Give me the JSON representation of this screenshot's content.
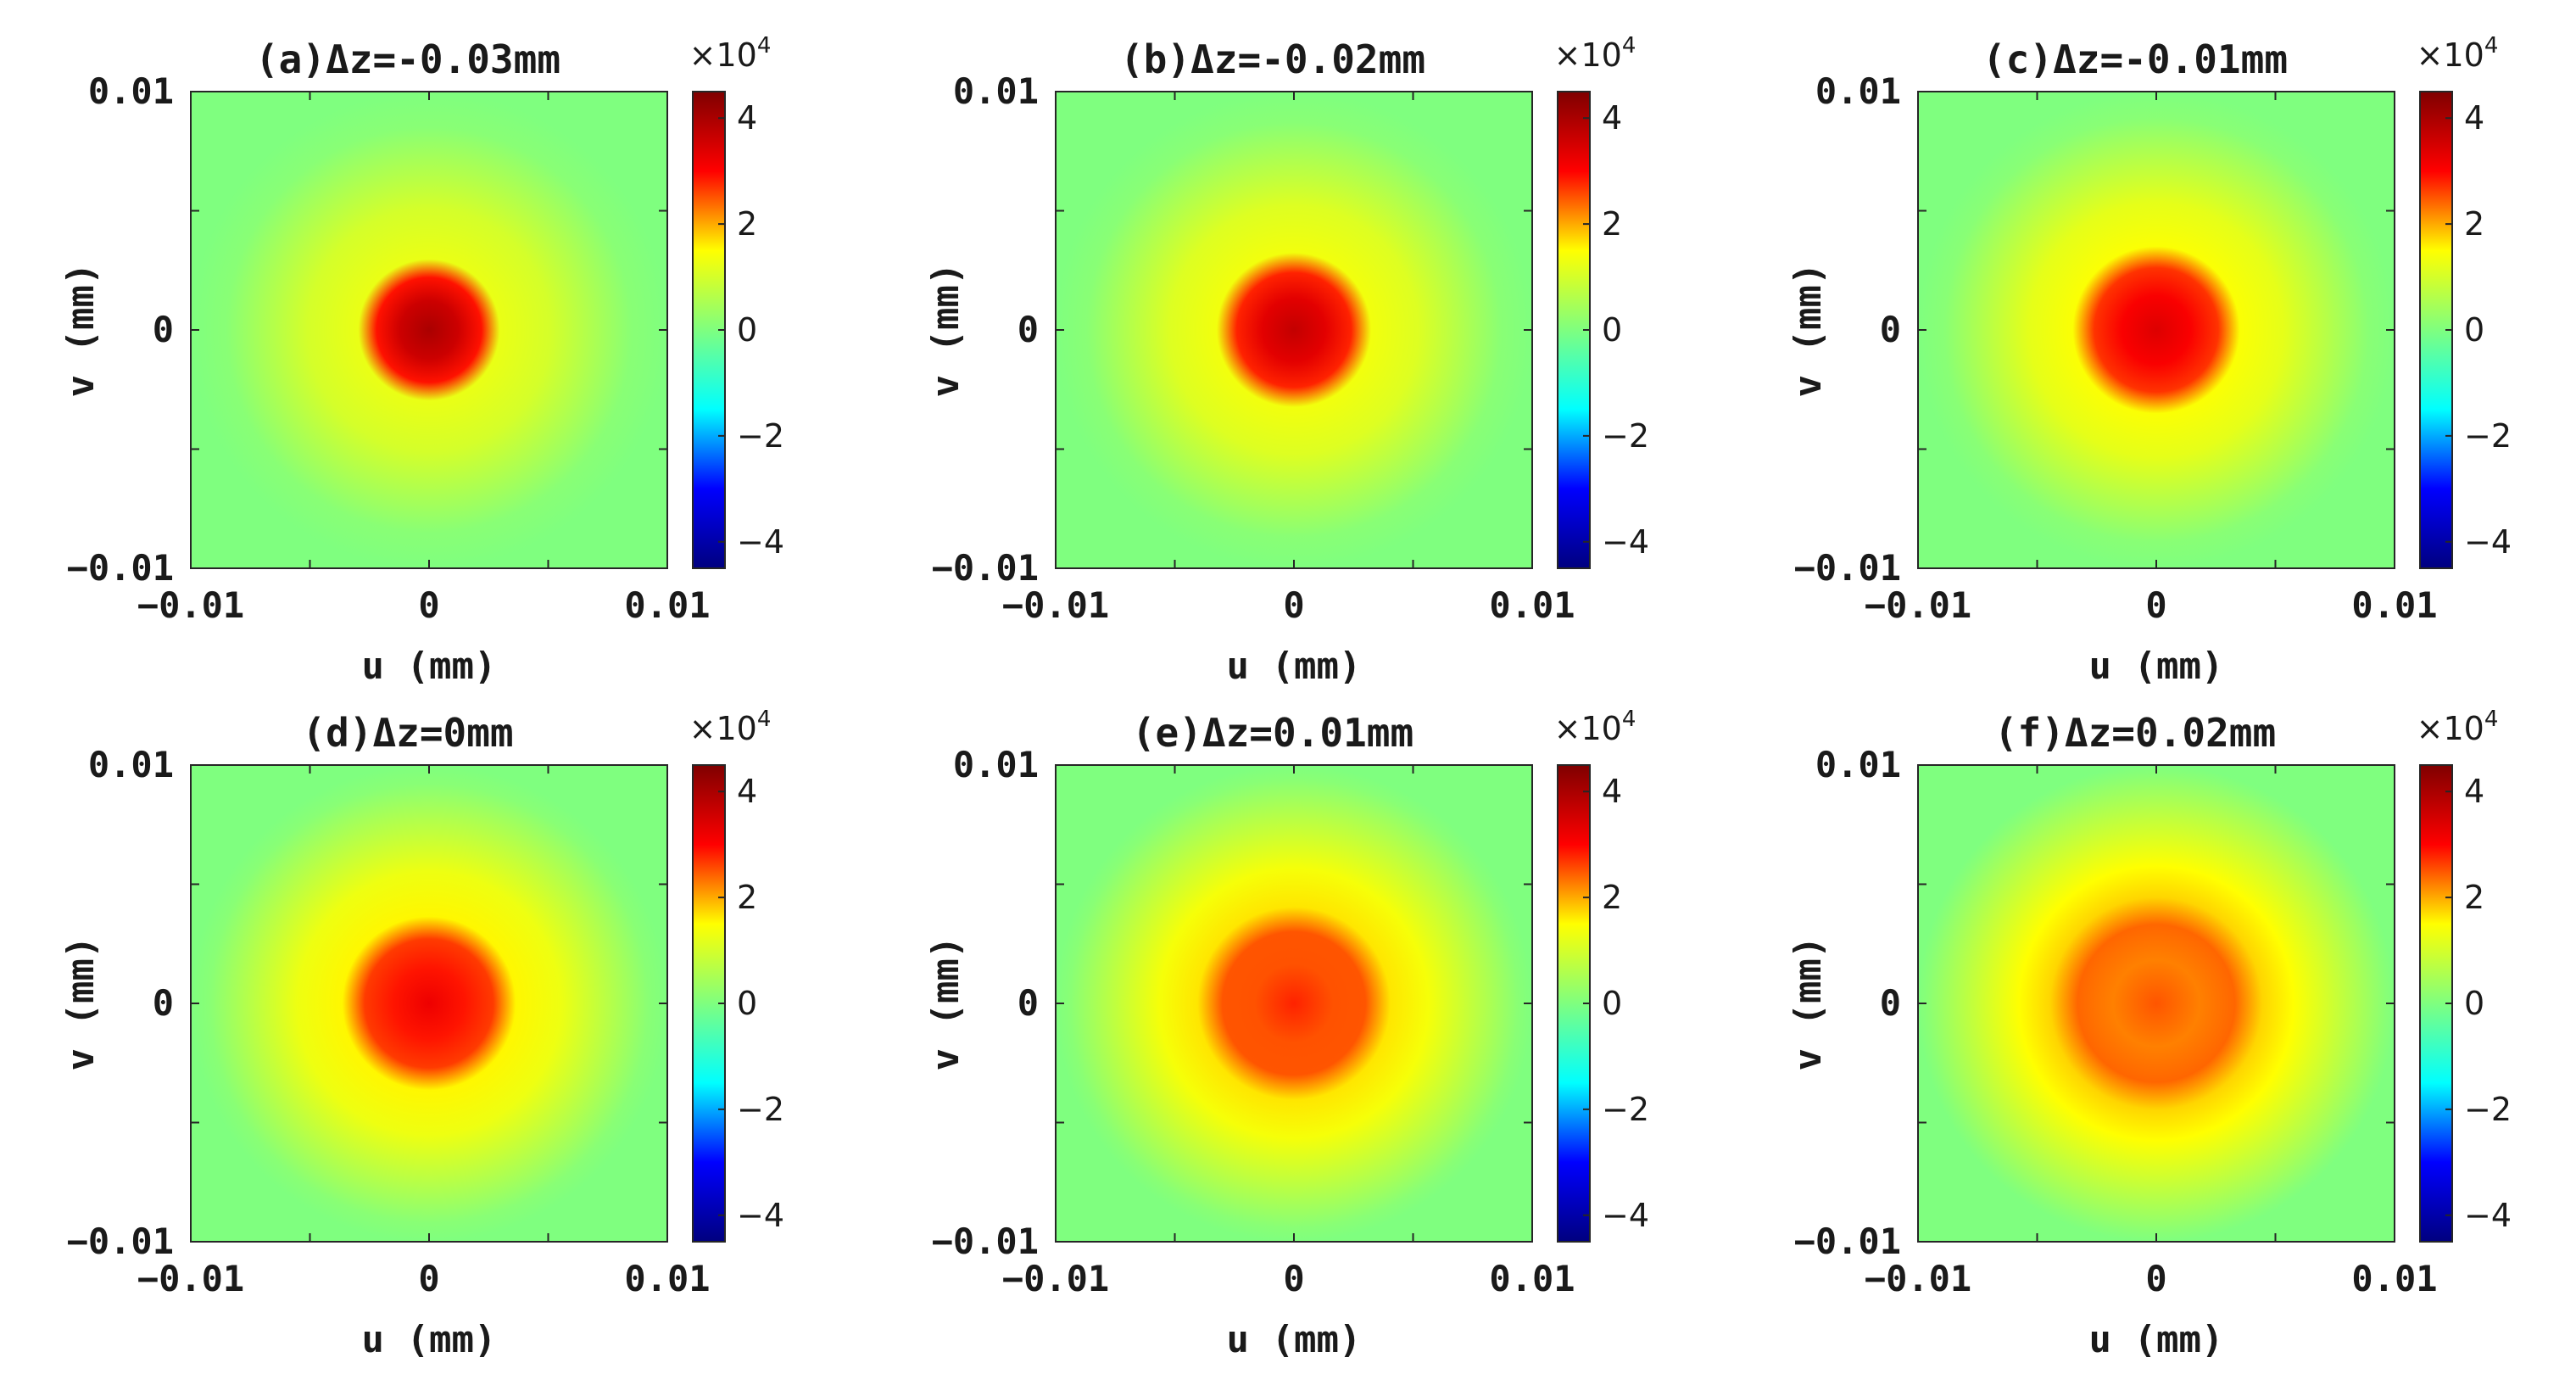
{
  "figure": {
    "background": "#ffffff"
  },
  "colormap": {
    "name": "jet",
    "stops": [
      "#00007f",
      "#0000ff",
      "#00ffff",
      "#7fff7f",
      "#ffff00",
      "#ff0000",
      "#7f0000"
    ]
  },
  "chart_data": [
    {
      "type": "heatmap",
      "panel": "a",
      "title": "(a)Δz=-0.03mm",
      "xlabel": "u (mm)",
      "ylabel": "v (mm)",
      "xlim": [
        -0.01,
        0.01
      ],
      "ylim": [
        -0.01,
        0.01
      ],
      "xticks": [
        "-0.01",
        "0",
        "0.01"
      ],
      "yticks": [
        "0.01",
        "0",
        "-0.01"
      ],
      "colorbar": {
        "clim": [
          -4.5,
          4.5
        ],
        "ticks": [
          "4",
          "2",
          "0",
          "-2",
          "-4"
        ],
        "exponent_label": "×10",
        "exponent": "4"
      },
      "field": {
        "peak_value": 4.0,
        "core_radius": 0.0022,
        "halo_value": 1.0,
        "halo_radius": 0.0085
      }
    },
    {
      "type": "heatmap",
      "panel": "b",
      "title": "(b)Δz=-0.02mm",
      "xlabel": "u (mm)",
      "ylabel": "v (mm)",
      "xlim": [
        -0.01,
        0.01
      ],
      "ylim": [
        -0.01,
        0.01
      ],
      "xticks": [
        "-0.01",
        "0",
        "0.01"
      ],
      "yticks": [
        "0.01",
        "0",
        "-0.01"
      ],
      "colorbar": {
        "clim": [
          -4.5,
          4.5
        ],
        "ticks": [
          "4",
          "2",
          "0",
          "-2",
          "-4"
        ],
        "exponent_label": "×10",
        "exponent": "4"
      },
      "field": {
        "peak_value": 3.7,
        "core_radius": 0.0024,
        "halo_value": 1.1,
        "halo_radius": 0.0087
      }
    },
    {
      "type": "heatmap",
      "panel": "c",
      "title": "(c)Δz=-0.01mm",
      "xlabel": "u (mm)",
      "ylabel": "v (mm)",
      "xlim": [
        -0.01,
        0.01
      ],
      "ylim": [
        -0.01,
        0.01
      ],
      "xticks": [
        "-0.01",
        "0",
        "0.01"
      ],
      "yticks": [
        "0.01",
        "0",
        "-0.01"
      ],
      "colorbar": {
        "clim": [
          -4.5,
          4.5
        ],
        "ticks": [
          "4",
          "2",
          "0",
          "-2",
          "-4"
        ],
        "exponent_label": "×10",
        "exponent": "4"
      },
      "field": {
        "peak_value": 3.4,
        "core_radius": 0.0026,
        "halo_value": 1.2,
        "halo_radius": 0.0089
      }
    },
    {
      "type": "heatmap",
      "panel": "d",
      "title": "(d)Δz=0mm",
      "xlabel": "u (mm)",
      "ylabel": "v (mm)",
      "xlim": [
        -0.01,
        0.01
      ],
      "ylim": [
        -0.01,
        0.01
      ],
      "xticks": [
        "-0.01",
        "0",
        "0.01"
      ],
      "yticks": [
        "0.01",
        "0",
        "-0.01"
      ],
      "colorbar": {
        "clim": [
          -4.5,
          4.5
        ],
        "ticks": [
          "4",
          "2",
          "0",
          "-2",
          "-4"
        ],
        "exponent_label": "×10",
        "exponent": "4"
      },
      "field": {
        "peak_value": 3.2,
        "core_radius": 0.0027,
        "halo_value": 1.3,
        "halo_radius": 0.0092
      }
    },
    {
      "type": "heatmap",
      "panel": "e",
      "title": "(e)Δz=0.01mm",
      "xlabel": "u (mm)",
      "ylabel": "v (mm)",
      "xlim": [
        -0.01,
        0.01
      ],
      "ylim": [
        -0.01,
        0.01
      ],
      "xticks": [
        "-0.01",
        "0",
        "0.01"
      ],
      "yticks": [
        "0.01",
        "0",
        "-0.01"
      ],
      "colorbar": {
        "clim": [
          -4.5,
          4.5
        ],
        "ticks": [
          "4",
          "2",
          "0",
          "-2",
          "-4"
        ],
        "exponent_label": "×10",
        "exponent": "4"
      },
      "field": {
        "peak_value": 2.8,
        "core_radius": 0.003,
        "halo_value": 1.4,
        "halo_radius": 0.0094
      }
    },
    {
      "type": "heatmap",
      "panel": "f",
      "title": "(f)Δz=0.02mm",
      "xlabel": "u (mm)",
      "ylabel": "v (mm)",
      "xlim": [
        -0.01,
        0.01
      ],
      "ylim": [
        -0.01,
        0.01
      ],
      "xticks": [
        "-0.01",
        "0",
        "0.01"
      ],
      "yticks": [
        "0.01",
        "0",
        "-0.01"
      ],
      "colorbar": {
        "clim": [
          -4.5,
          4.5
        ],
        "ticks": [
          "4",
          "2",
          "0",
          "-2",
          "-4"
        ],
        "exponent_label": "×10",
        "exponent": "4"
      },
      "field": {
        "peak_value": 2.5,
        "core_radius": 0.0033,
        "halo_value": 1.5,
        "halo_radius": 0.0096
      }
    }
  ]
}
